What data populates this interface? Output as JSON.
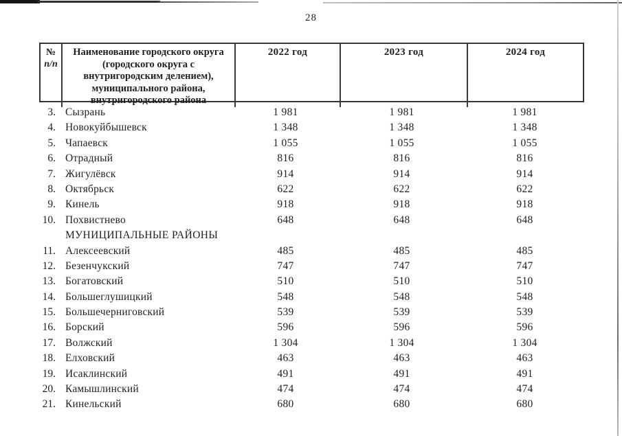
{
  "colors": {
    "paper": "#ffffff",
    "ink": "#1f1f1f",
    "table_border": "#353535"
  },
  "page": {
    "number": "28"
  },
  "table": {
    "headers": {
      "num_line1": "№",
      "num_line2": "п/п",
      "name_multiline": "Наименование городского округа\n(городского округа с\nвнутригородским делением),\nмуниципального района,\nвнутригородского района",
      "years": [
        "2022 год",
        "2023 год",
        "2024 год"
      ]
    },
    "rows": [
      {
        "num": "3.",
        "name": "Сызрань",
        "y2022": "1 981",
        "y2023": "1 981",
        "y2024": "1 981"
      },
      {
        "num": "4.",
        "name": "Новокуйбышевск",
        "y2022": "1 348",
        "y2023": "1 348",
        "y2024": "1 348"
      },
      {
        "num": "5.",
        "name": "Чапаевск",
        "y2022": "1 055",
        "y2023": "1 055",
        "y2024": "1 055"
      },
      {
        "num": "6.",
        "name": "Отрадный",
        "y2022": "816",
        "y2023": "816",
        "y2024": "816"
      },
      {
        "num": "7.",
        "name": "Жигулёвск",
        "y2022": "914",
        "y2023": "914",
        "y2024": "914"
      },
      {
        "num": "8.",
        "name": "Октябрьск",
        "y2022": "622",
        "y2023": "622",
        "y2024": "622"
      },
      {
        "num": "9.",
        "name": "Кинель",
        "y2022": "918",
        "y2023": "918",
        "y2024": "918"
      },
      {
        "num": "10.",
        "name": "Похвистнево",
        "y2022": "648",
        "y2023": "648",
        "y2024": "648"
      },
      {
        "section": true,
        "label": "МУНИЦИПАЛЬНЫЕ РАЙОНЫ"
      },
      {
        "num": "11.",
        "name": "Алексеевский",
        "y2022": "485",
        "y2023": "485",
        "y2024": "485"
      },
      {
        "num": "12.",
        "name": "Безенчукский",
        "y2022": "747",
        "y2023": "747",
        "y2024": "747"
      },
      {
        "num": "13.",
        "name": "Богатовский",
        "y2022": "510",
        "y2023": "510",
        "y2024": "510"
      },
      {
        "num": "14.",
        "name": "Большеглушицкий",
        "y2022": "548",
        "y2023": "548",
        "y2024": "548"
      },
      {
        "num": "15.",
        "name": "Большечерниговский",
        "y2022": "539",
        "y2023": "539",
        "y2024": "539"
      },
      {
        "num": "16.",
        "name": "Борский",
        "y2022": "596",
        "y2023": "596",
        "y2024": "596"
      },
      {
        "num": "17.",
        "name": "Волжский",
        "y2022": "1 304",
        "y2023": "1 304",
        "y2024": "1 304"
      },
      {
        "num": "18.",
        "name": "Елховский",
        "y2022": "463",
        "y2023": "463",
        "y2024": "463"
      },
      {
        "num": "19.",
        "name": "Исаклинский",
        "y2022": "491",
        "y2023": "491",
        "y2024": "491"
      },
      {
        "num": "20.",
        "name": "Камышлинский",
        "y2022": "474",
        "y2023": "474",
        "y2024": "474"
      },
      {
        "num": "21.",
        "name": "Кинельский",
        "y2022": "680",
        "y2023": "680",
        "y2024": "680"
      }
    ]
  }
}
